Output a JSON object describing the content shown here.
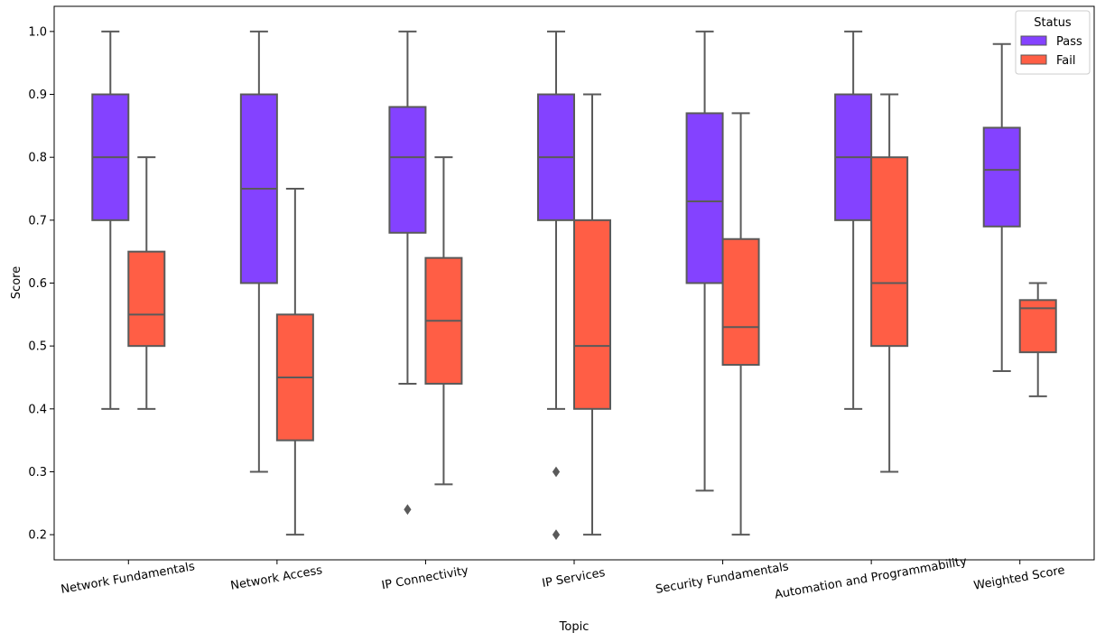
{
  "chart_data": {
    "type": "boxplot",
    "title": "",
    "xlabel": "Topic",
    "ylabel": "Score",
    "ylim": [
      0.16,
      1.04
    ],
    "yticks": [
      "0.2",
      "0.3",
      "0.4",
      "0.5",
      "0.6",
      "0.7",
      "0.8",
      "0.9",
      "1.0"
    ],
    "ytick_values": [
      0.2,
      0.3,
      0.4,
      0.5,
      0.6,
      0.7,
      0.8,
      0.9,
      1.0
    ],
    "categories": [
      "Network Fundamentals",
      "Network Access",
      "IP Connectivity",
      "IP Services",
      "Security Fundamentals",
      "Automation and Programmability",
      "Weighted Score"
    ],
    "legend": {
      "title": "Status",
      "position": "top-right"
    },
    "series": [
      {
        "name": "Pass",
        "color": "#8442ff",
        "boxes": [
          {
            "whislo": 0.4,
            "q1": 0.7,
            "med": 0.8,
            "q3": 0.9,
            "whishi": 1.0,
            "fliers": []
          },
          {
            "whislo": 0.3,
            "q1": 0.6,
            "med": 0.75,
            "q3": 0.9,
            "whishi": 1.0,
            "fliers": []
          },
          {
            "whislo": 0.44,
            "q1": 0.68,
            "med": 0.8,
            "q3": 0.88,
            "whishi": 1.0,
            "fliers": [
              0.24
            ]
          },
          {
            "whislo": 0.4,
            "q1": 0.7,
            "med": 0.8,
            "q3": 0.9,
            "whishi": 1.0,
            "fliers": [
              0.3,
              0.2
            ]
          },
          {
            "whislo": 0.27,
            "q1": 0.6,
            "med": 0.73,
            "q3": 0.87,
            "whishi": 1.0,
            "fliers": []
          },
          {
            "whislo": 0.4,
            "q1": 0.7,
            "med": 0.8,
            "q3": 0.9,
            "whishi": 1.0,
            "fliers": []
          },
          {
            "whislo": 0.46,
            "q1": 0.69,
            "med": 0.78,
            "q3": 0.847,
            "whishi": 0.98,
            "fliers": []
          }
        ]
      },
      {
        "name": "Fail",
        "color": "#ff5e45",
        "boxes": [
          {
            "whislo": 0.4,
            "q1": 0.5,
            "med": 0.55,
            "q3": 0.65,
            "whishi": 0.8,
            "fliers": []
          },
          {
            "whislo": 0.2,
            "q1": 0.35,
            "med": 0.45,
            "q3": 0.55,
            "whishi": 0.75,
            "fliers": []
          },
          {
            "whislo": 0.28,
            "q1": 0.44,
            "med": 0.54,
            "q3": 0.64,
            "whishi": 0.8,
            "fliers": []
          },
          {
            "whislo": 0.2,
            "q1": 0.4,
            "med": 0.5,
            "q3": 0.7,
            "whishi": 0.9,
            "fliers": []
          },
          {
            "whislo": 0.2,
            "q1": 0.47,
            "med": 0.53,
            "q3": 0.67,
            "whishi": 0.87,
            "fliers": []
          },
          {
            "whislo": 0.3,
            "q1": 0.5,
            "med": 0.6,
            "q3": 0.8,
            "whishi": 0.9,
            "fliers": []
          },
          {
            "whislo": 0.42,
            "q1": 0.49,
            "med": 0.56,
            "q3": 0.573,
            "whishi": 0.6,
            "fliers": []
          }
        ]
      }
    ]
  }
}
